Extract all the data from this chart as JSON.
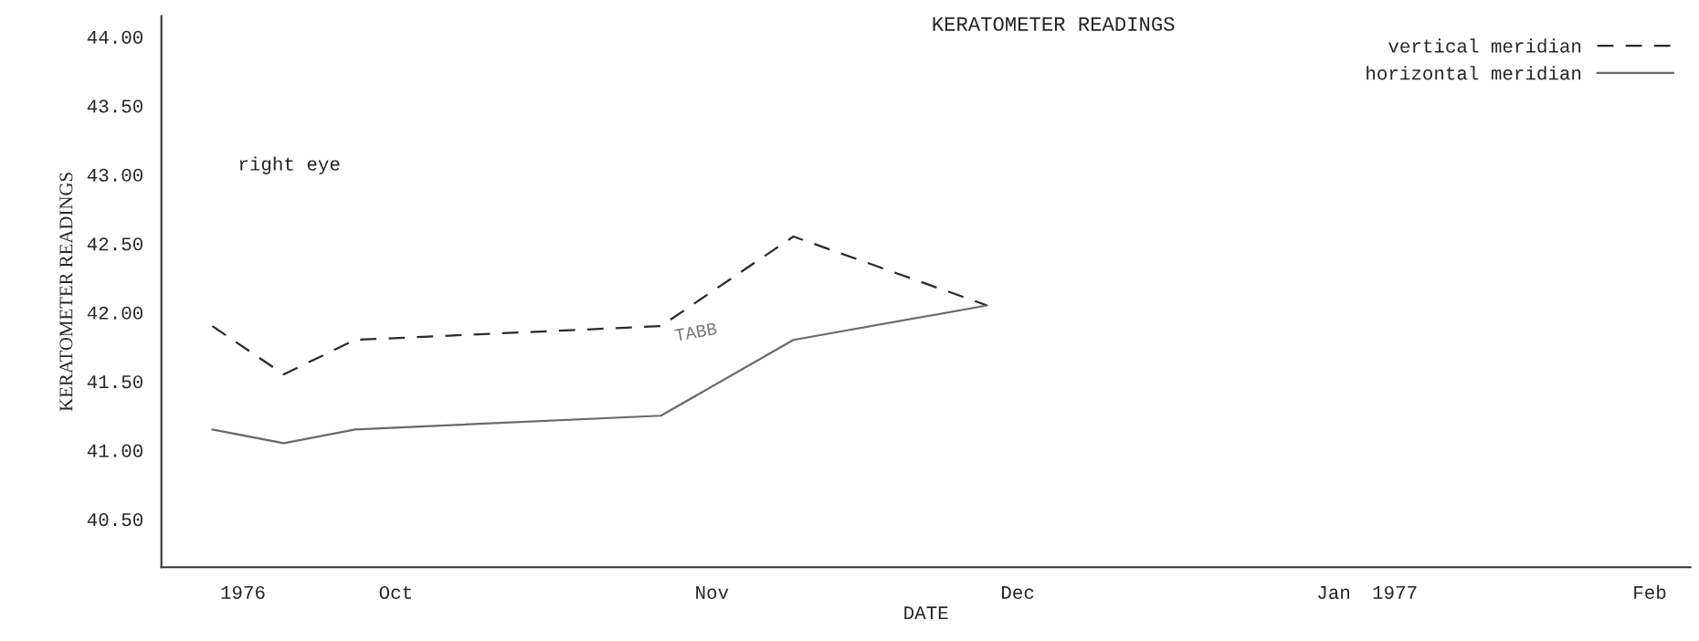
{
  "chart_data": {
    "type": "line",
    "title": "KERATOMETER READINGS",
    "xlabel": "DATE",
    "ylabel": "KERATOMETER READINGS",
    "annotations": [
      "right eye",
      "TABB"
    ],
    "series": [
      {
        "name": "vertical meridian",
        "color": "#2a2a2a",
        "line_style": "dashed",
        "x": [
          "1976-09-13",
          "1976-09-20",
          "1976-09-27",
          "1976-10-27",
          "1976-11-09",
          "1976-11-28"
        ],
        "values": [
          41.9,
          41.55,
          41.8,
          41.9,
          42.55,
          42.05
        ]
      },
      {
        "name": "horizontal meridian",
        "color": "#6a6a6a",
        "line_style": "solid",
        "x": [
          "1976-09-13",
          "1976-09-20",
          "1976-09-27",
          "1976-10-27",
          "1976-11-09",
          "1976-11-28"
        ],
        "values": [
          41.15,
          41.05,
          41.15,
          41.25,
          41.8,
          42.05
        ]
      }
    ],
    "xlim": [
      "1976-09-08",
      "1977-02-05"
    ],
    "xticks": [
      {
        "value": "1976-09-16",
        "label": "1976"
      },
      {
        "value": "1976-10-01",
        "label": "Oct"
      },
      {
        "value": "1976-11-01",
        "label": "Nov"
      },
      {
        "value": "1976-12-01",
        "label": "Dec"
      },
      {
        "value": "1977-01-01",
        "label": "Jan"
      },
      {
        "value": "1977-01-07",
        "label": "1977"
      },
      {
        "value": "1977-02-01",
        "label": "Feb"
      }
    ],
    "ylim": [
      40.15,
      44.15
    ],
    "yticks": [
      {
        "value": 40.5,
        "label": "40.50"
      },
      {
        "value": 41,
        "label": "41.00"
      },
      {
        "value": 41.5,
        "label": "41.50"
      },
      {
        "value": 42,
        "label": "42.00"
      },
      {
        "value": 42.5,
        "label": "42.50"
      },
      {
        "value": 43,
        "label": "43.00"
      },
      {
        "value": 43.5,
        "label": "43.50"
      },
      {
        "value": 44,
        "label": "44.00"
      }
    ],
    "legend": "top right",
    "grid": false,
    "marker": "none"
  }
}
